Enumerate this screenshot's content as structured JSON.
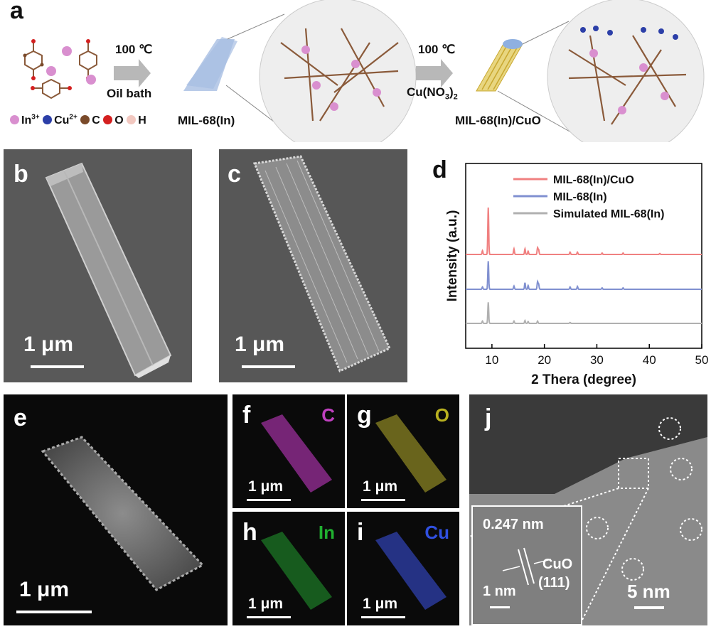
{
  "panel_a": {
    "label": "a",
    "step1_temp": "100 ℃",
    "step1_cond": "Oil bath",
    "mof_label": "MIL-68(In)",
    "step2_temp": "100 ℃",
    "step2_reagent_main": "Cu(NO",
    "step2_reagent_sub": "3",
    "step2_reagent_close": ")",
    "step2_reagent_sub2": "2",
    "product_label": "MIL-68(In)/CuO",
    "legend": [
      {
        "label": "In",
        "sup": "3+",
        "color": "#d98fcf"
      },
      {
        "label": "Cu",
        "sup": "2+",
        "color": "#2c3fa8"
      },
      {
        "label": "C",
        "sup": "",
        "color": "#7a4a2a"
      },
      {
        "label": "O",
        "sup": "",
        "color": "#d42020"
      },
      {
        "label": "H",
        "sup": "",
        "color": "#f2c8c0"
      }
    ]
  },
  "panel_b": {
    "label": "b",
    "scale": "1 μm"
  },
  "panel_c": {
    "label": "c",
    "scale": "1 μm"
  },
  "panel_d": {
    "label": "d"
  },
  "panel_e": {
    "label": "e",
    "scale": "1 μm"
  },
  "panel_f": {
    "label": "f",
    "element": "C",
    "scale": "1 μm",
    "color": "#c040c0"
  },
  "panel_g": {
    "label": "g",
    "element": "O",
    "scale": "1 μm",
    "color": "#b8b020"
  },
  "panel_h": {
    "label": "h",
    "element": "In",
    "scale": "1 μm",
    "color": "#20b030"
  },
  "panel_i": {
    "label": "i",
    "element": "Cu",
    "scale": "1 μm",
    "color": "#3050e0"
  },
  "panel_j": {
    "label": "j",
    "lattice": "0.247 nm",
    "phase": "CuO",
    "plane": "(111)",
    "inset_scale": "1 nm",
    "scale": "5 nm"
  },
  "chart_data": {
    "type": "line",
    "xlabel": "2 Thera (degree)",
    "ylabel": "Intensity (a.u.)",
    "xlim": [
      5,
      50
    ],
    "xticks": [
      10,
      20,
      30,
      40,
      50
    ],
    "yticks": "none",
    "grid": false,
    "legend_position": "top-right",
    "series": [
      {
        "name": "MIL-68(In)/CuO",
        "color": "#f08080",
        "offset": 2,
        "peaks": [
          [
            8.2,
            0.08
          ],
          [
            9.3,
            1.0
          ],
          [
            14.2,
            0.12
          ],
          [
            16.3,
            0.12
          ],
          [
            16.9,
            0.07
          ],
          [
            18.7,
            0.14
          ],
          [
            18.9,
            0.1
          ],
          [
            24.9,
            0.05
          ],
          [
            26.3,
            0.05
          ],
          [
            31.0,
            0.03
          ],
          [
            35.0,
            0.03
          ],
          [
            42.0,
            0.02
          ]
        ]
      },
      {
        "name": "MIL-68(In)",
        "color": "#8090d0",
        "offset": 1,
        "peaks": [
          [
            8.2,
            0.05
          ],
          [
            9.3,
            0.6
          ],
          [
            14.2,
            0.07
          ],
          [
            16.3,
            0.14
          ],
          [
            16.9,
            0.08
          ],
          [
            18.7,
            0.16
          ],
          [
            18.9,
            0.11
          ],
          [
            24.9,
            0.05
          ],
          [
            26.3,
            0.06
          ],
          [
            31.0,
            0.03
          ],
          [
            35.0,
            0.03
          ]
        ]
      },
      {
        "name": "Simulated MIL-68(In)",
        "color": "#b0b0b0",
        "offset": 0,
        "peaks": [
          [
            8.2,
            0.05
          ],
          [
            9.3,
            0.45
          ],
          [
            14.2,
            0.05
          ],
          [
            16.3,
            0.06
          ],
          [
            16.9,
            0.04
          ],
          [
            18.7,
            0.05
          ],
          [
            24.9,
            0.02
          ]
        ]
      }
    ]
  }
}
